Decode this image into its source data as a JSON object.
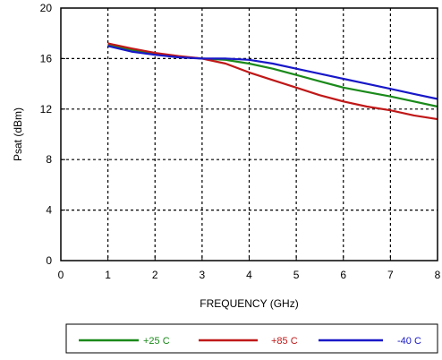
{
  "chart_data": {
    "type": "line",
    "title": "",
    "xlabel": "FREQUENCY (GHz)",
    "ylabel": "Psat (dBm)",
    "xlim": [
      0,
      8
    ],
    "ylim": [
      0,
      20
    ],
    "x_ticks": [
      "0",
      "1",
      "2",
      "3",
      "4",
      "5",
      "6",
      "7",
      "8"
    ],
    "y_ticks": [
      "0",
      "4",
      "8",
      "12",
      "16",
      "20"
    ],
    "grid": true,
    "legend_position": "bottom",
    "series": [
      {
        "name": "+25 C",
        "color": "#1a8a1a",
        "x": [
          1,
          1.5,
          2,
          2.5,
          3,
          3.5,
          4,
          4.5,
          5,
          5.5,
          6,
          6.5,
          7,
          7.5,
          8
        ],
        "y": [
          17.1,
          16.7,
          16.4,
          16.15,
          16.0,
          15.9,
          15.6,
          15.2,
          14.7,
          14.2,
          13.7,
          13.35,
          13.0,
          12.6,
          12.2
        ]
      },
      {
        "name": "+85 C",
        "color": "#c01818",
        "x": [
          1,
          1.5,
          2,
          2.5,
          3,
          3.5,
          4,
          4.5,
          5,
          5.5,
          6,
          6.5,
          7,
          7.5,
          8
        ],
        "y": [
          17.2,
          16.8,
          16.45,
          16.2,
          16.0,
          15.6,
          14.9,
          14.3,
          13.7,
          13.1,
          12.6,
          12.2,
          11.9,
          11.5,
          11.2
        ]
      },
      {
        "name": "-40 C",
        "color": "#1818c8",
        "x": [
          1,
          1.5,
          2,
          2.5,
          3,
          3.5,
          4,
          4.5,
          5,
          5.5,
          6,
          6.5,
          7,
          7.5,
          8
        ],
        "y": [
          17.0,
          16.55,
          16.3,
          16.1,
          16.0,
          16.0,
          15.9,
          15.6,
          15.2,
          14.8,
          14.4,
          14.0,
          13.6,
          13.2,
          12.8
        ]
      }
    ]
  }
}
